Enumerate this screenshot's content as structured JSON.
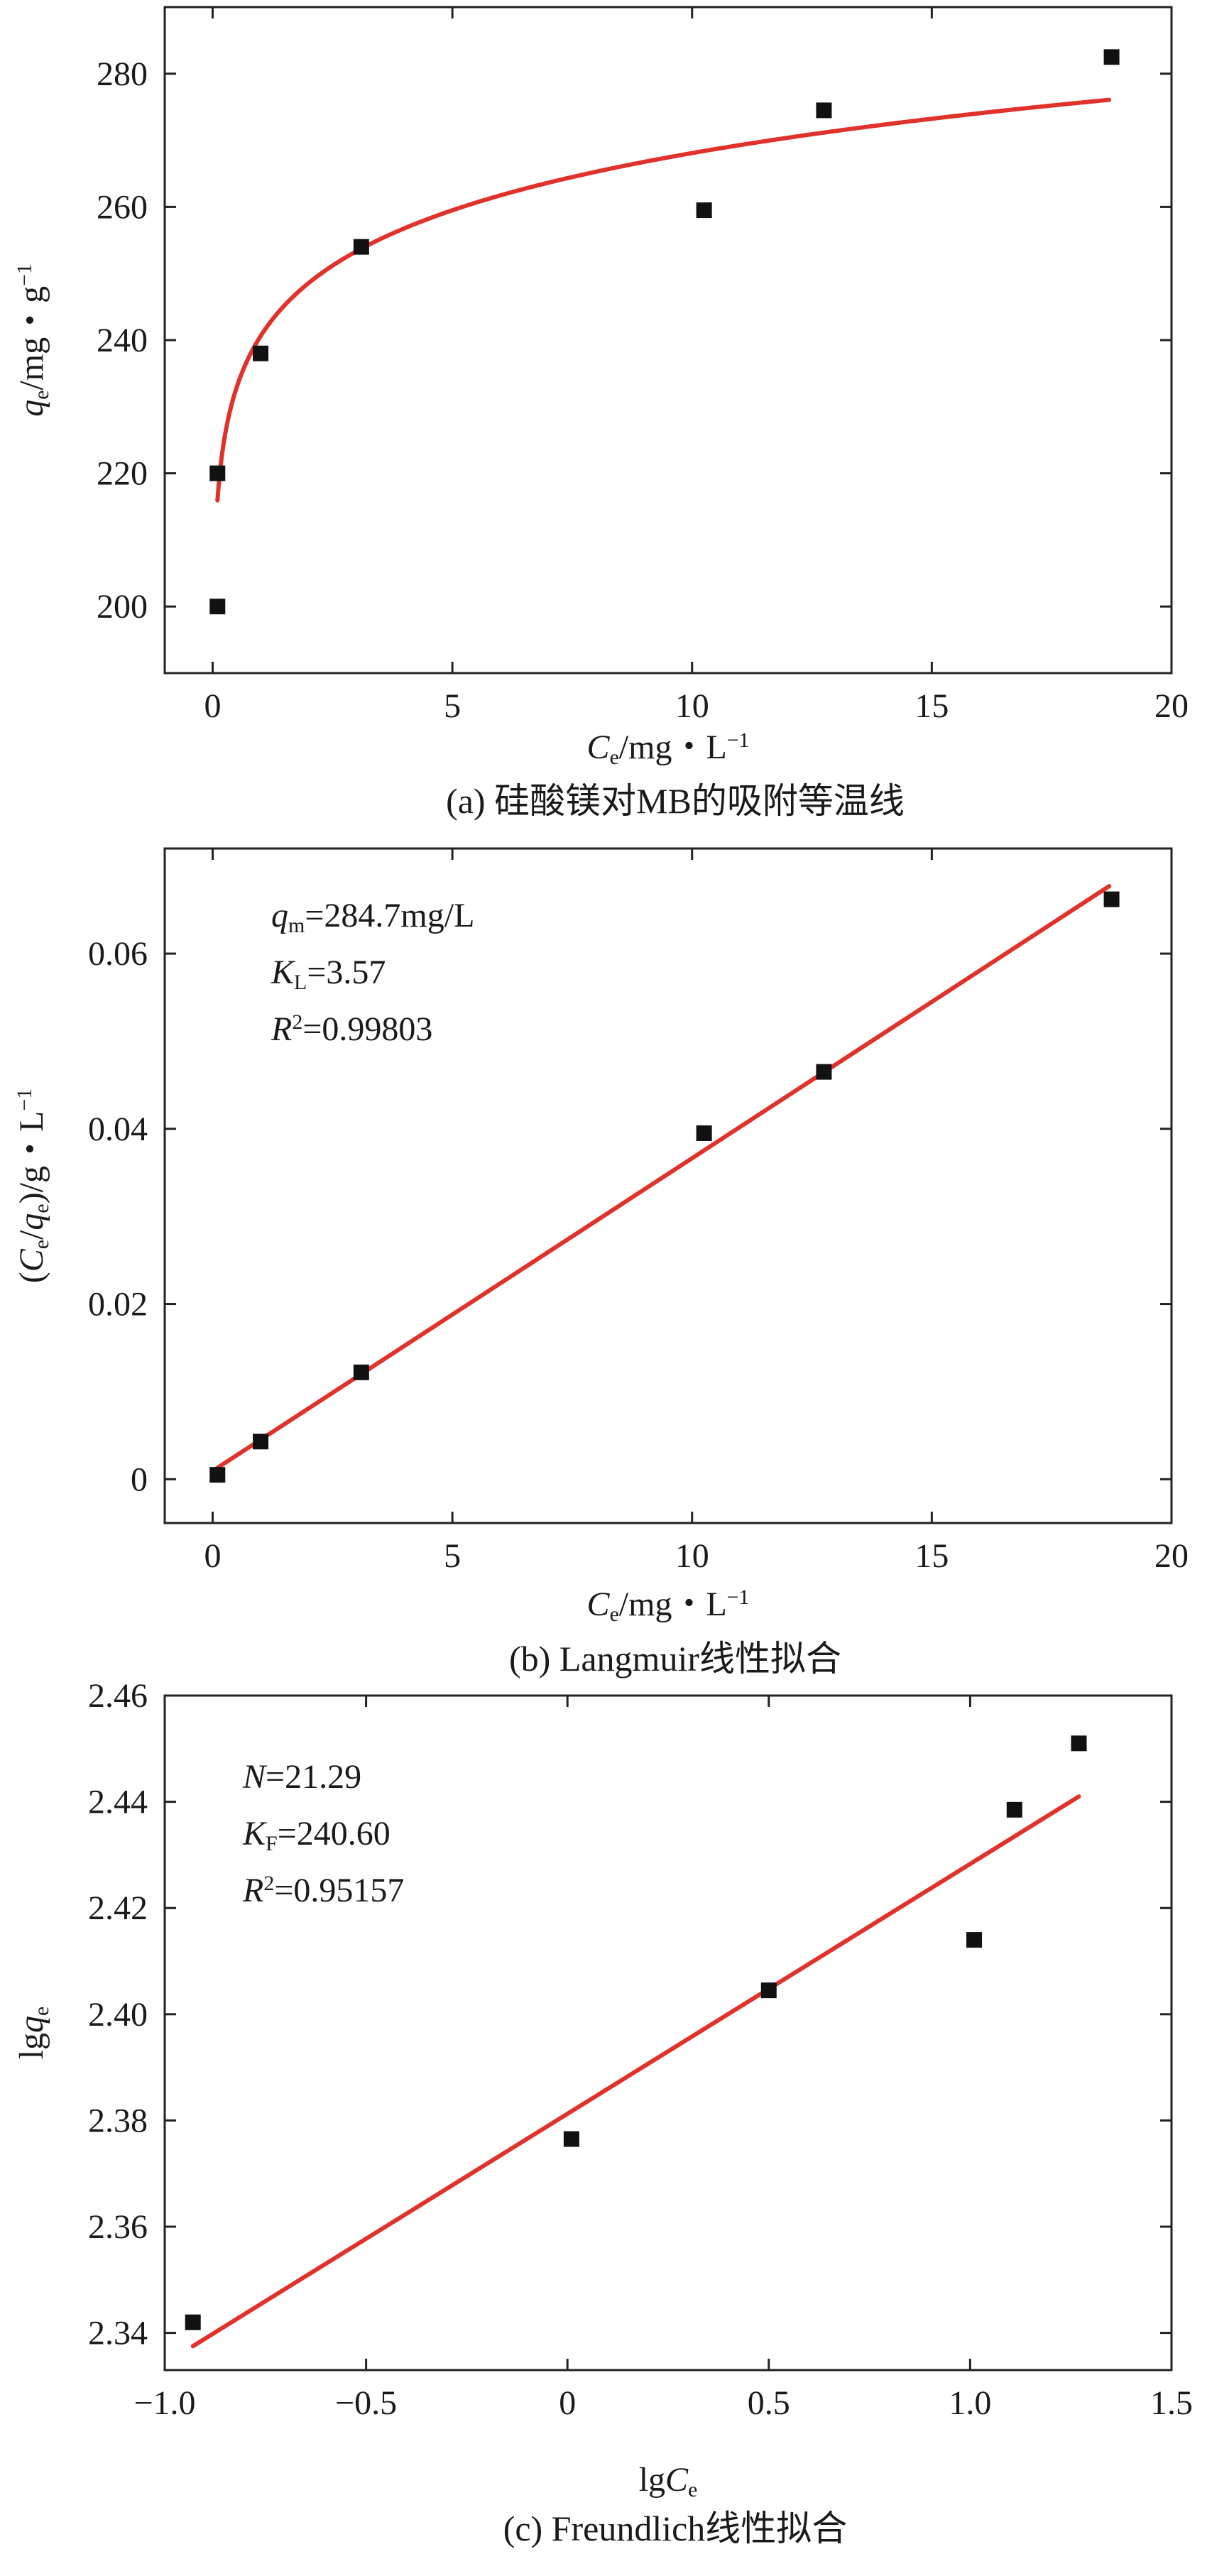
{
  "chart_data": [
    {
      "type": "scatter",
      "xlim": [
        -1,
        20
      ],
      "ylim": [
        190,
        290
      ],
      "xticks": [
        0,
        5,
        10,
        15,
        20
      ],
      "yticks": [
        200,
        220,
        240,
        260,
        280
      ],
      "xtick_labels": [
        "0",
        "5",
        "10",
        "15",
        "20"
      ],
      "ytick_labels": [
        "200",
        "220",
        "240",
        "260",
        "280"
      ],
      "xlabel": {
        "var": "C",
        "sub": "e",
        "unit": "/mg・L",
        "sup": "−1"
      },
      "ylabel": {
        "var": "q",
        "sub": "e",
        "unit": "/mg・g",
        "sup": "−1"
      },
      "caption": "(a) 硅酸镁对MB的吸附等温线",
      "points": {
        "x": [
          0.1,
          0.1,
          1.0,
          3.1,
          10.25,
          12.75,
          18.75
        ],
        "y": [
          200,
          220,
          238,
          254,
          259.5,
          274.5,
          282.5
        ]
      },
      "fit": {
        "model": "freundlich",
        "K": 240.6,
        "n": 21.29,
        "x_start": 0.1,
        "x_end": 18.7
      }
    },
    {
      "type": "scatter",
      "xlim": [
        -1,
        20
      ],
      "ylim": [
        -0.005,
        0.072
      ],
      "xticks": [
        0,
        5,
        10,
        15,
        20
      ],
      "yticks": [
        0,
        0.02,
        0.04,
        0.06
      ],
      "xtick_labels": [
        "0",
        "5",
        "10",
        "15",
        "20"
      ],
      "ytick_labels": [
        "0",
        "0.02",
        "0.04",
        "0.06"
      ],
      "xlabel": {
        "var": "C",
        "sub": "e",
        "unit": "/mg・L",
        "sup": "−1"
      },
      "ylabel_text": [
        "(",
        "C",
        "e",
        "/",
        "q",
        "e",
        ")/g・L",
        "−1"
      ],
      "caption": "(b) Langmuir线性拟合",
      "points": {
        "x": [
          0.1,
          1.0,
          3.1,
          10.25,
          12.75,
          18.75
        ],
        "y": [
          0.0005,
          0.0043,
          0.0122,
          0.0395,
          0.0465,
          0.0662
        ]
      },
      "fit": {
        "model": "linear",
        "x1": 0.1,
        "y1": 0.0013,
        "x2": 18.7,
        "y2": 0.0677
      },
      "annotations": [
        {
          "var": "q",
          "sub": "m",
          "value": "=284.7mg/L"
        },
        {
          "var": "K",
          "sub": "L",
          "value": "=3.57"
        },
        {
          "var": "R",
          "sup": "2",
          "value": "=0.99803"
        }
      ]
    },
    {
      "type": "scatter",
      "xlim": [
        -1.0,
        1.5
      ],
      "ylim": [
        2.333,
        2.46
      ],
      "xticks": [
        -1.0,
        -0.5,
        0,
        0.5,
        1.0,
        1.5
      ],
      "yticks": [
        2.34,
        2.36,
        2.38,
        2.4,
        2.42,
        2.44,
        2.46
      ],
      "xtick_labels": [
        "−1.0",
        "−0.5",
        "0",
        "0.5",
        "1.0",
        "1.5"
      ],
      "ytick_labels": [
        "2.34",
        "2.36",
        "2.38",
        "2.40",
        "2.42",
        "2.44",
        "2.46"
      ],
      "xlabel": {
        "prefix": "lg",
        "var": "C",
        "sub": "e"
      },
      "ylabel": {
        "prefix": "lg",
        "var": "q",
        "sub": "e"
      },
      "caption": "(c) Freundlich线性拟合",
      "points": {
        "x": [
          -0.93,
          0.01,
          0.5,
          1.01,
          1.11,
          1.27
        ],
        "y": [
          2.342,
          2.3765,
          2.4045,
          2.414,
          2.4385,
          2.451
        ]
      },
      "fit": {
        "model": "linear",
        "x1": -0.93,
        "y1": 2.3375,
        "x2": 1.27,
        "y2": 2.441
      },
      "annotations": [
        {
          "var": "N",
          "value": "=21.29"
        },
        {
          "var": "K",
          "sub": "F",
          "value": "=240.60"
        },
        {
          "var": "R",
          "sup": "2",
          "value": "=0.95157"
        }
      ]
    }
  ]
}
